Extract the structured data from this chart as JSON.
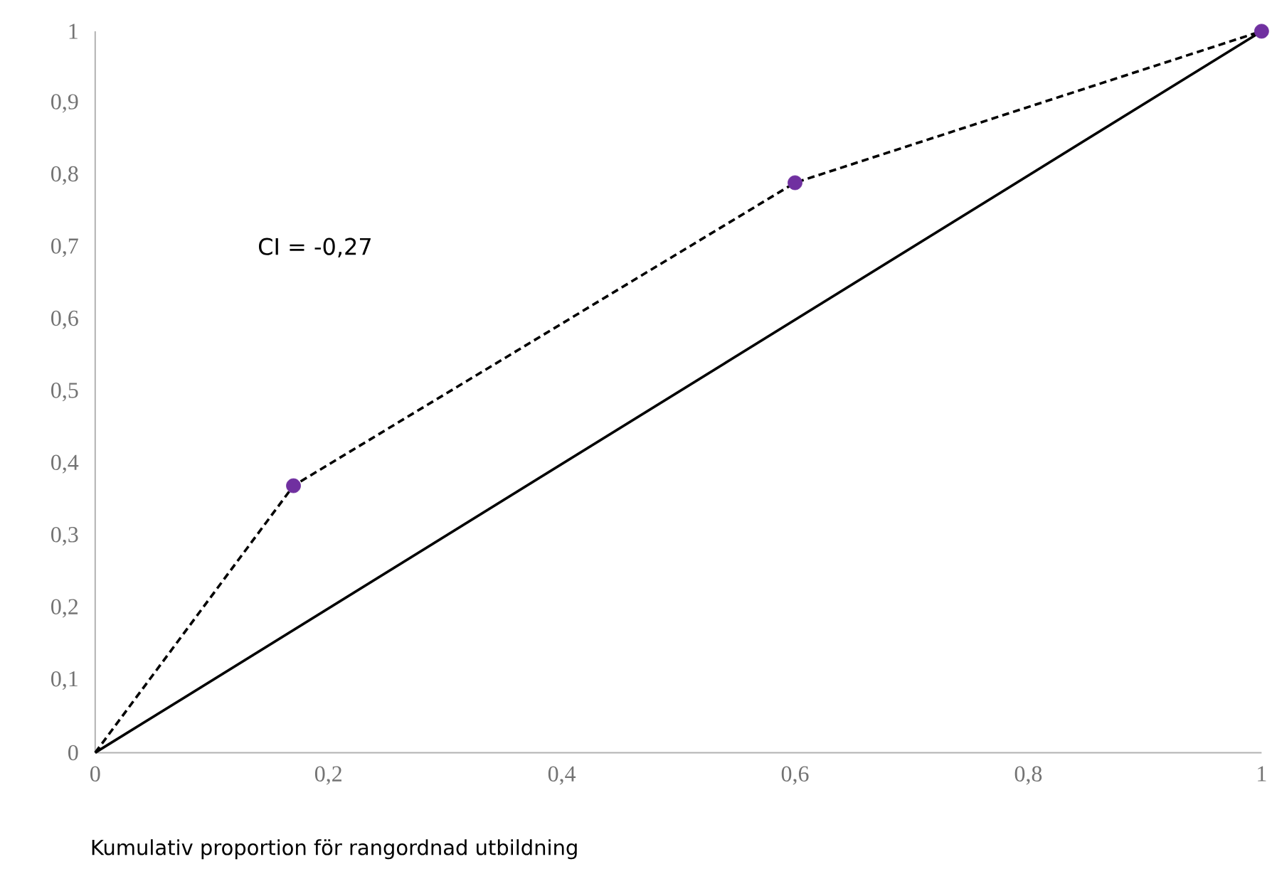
{
  "chart_data": {
    "type": "line",
    "xlabel": "Kumulativ proportion för rangordnad utbildning",
    "annotations": [
      "CI = -0,27"
    ],
    "series": [
      {
        "color": "#000000",
        "line_style": "solid",
        "x": [
          0,
          1
        ],
        "values": [
          0,
          1
        ]
      },
      {
        "color": "#000000",
        "line_style": "dashed",
        "x": [
          0,
          0.17,
          0.6,
          1
        ],
        "values": [
          0,
          0.37,
          0.79,
          1
        ]
      },
      {
        "type": "scatter",
        "color": "#7030a0",
        "marker": "circle",
        "x": [
          0.17,
          0.6,
          1
        ],
        "values": [
          0.37,
          0.79,
          1
        ]
      }
    ],
    "xlim": [
      0,
      1
    ],
    "ylim": [
      0,
      1
    ],
    "xticks": [
      0,
      {
        "value": 0.2,
        "label": "0,2"
      },
      {
        "value": 0.4,
        "label": "0,4"
      },
      {
        "value": 0.6,
        "label": "0,6"
      },
      {
        "value": 0.8,
        "label": "0,8"
      },
      1
    ],
    "yticks": [
      0,
      {
        "value": 0.1,
        "label": "0,1"
      },
      {
        "value": 0.2,
        "label": "0,2"
      },
      {
        "value": 0.3,
        "label": "0,3"
      },
      {
        "value": 0.4,
        "label": "0,4"
      },
      {
        "value": 0.5,
        "label": "0,5"
      },
      {
        "value": 0.6,
        "label": "0,6"
      },
      {
        "value": 0.7,
        "label": "0,7"
      },
      {
        "value": 0.8,
        "label": "0,8"
      },
      {
        "value": 0.9,
        "label": "0,9"
      },
      1
    ],
    "grid": false
  }
}
